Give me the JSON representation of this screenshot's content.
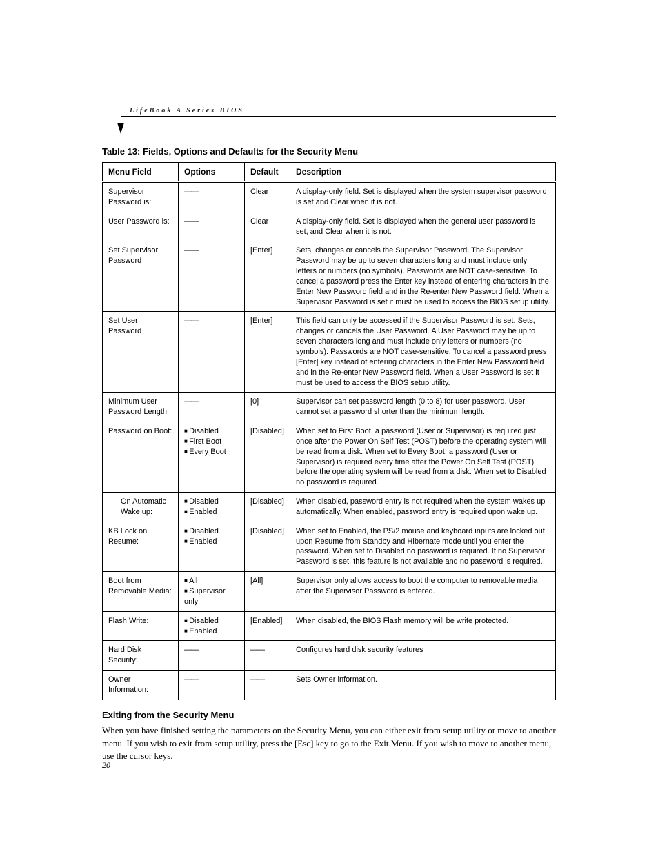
{
  "header": {
    "running_title": "LifeBook A Series BIOS"
  },
  "table": {
    "title": "Table 13: Fields, Options and Defaults for the Security Menu",
    "columns": {
      "c1": "Menu Field",
      "c2": "Options",
      "c3": "Default",
      "c4": "Description"
    },
    "rows": [
      {
        "field": "Supervisor Password is:",
        "options_dash": "——",
        "default": "Clear",
        "desc": "A display-only field. Set is displayed when the system supervisor password is set and Clear when it is not."
      },
      {
        "field": "User Password is:",
        "options_dash": "——",
        "default": "Clear",
        "desc": "A display-only field. Set is displayed when the general user password is set, and Clear when it is not."
      },
      {
        "field": "Set Supervisor Password",
        "options_dash": "——",
        "default": "[Enter]",
        "desc": "Sets, changes or cancels the Supervisor Password. The Supervisor Password may be up to seven characters long and must include only letters or numbers (no symbols). Passwords are NOT case-sensitive. To cancel a password press the Enter key instead of entering characters in the Enter New Password field and in the Re-enter New Password field. When a Supervisor Password is set it must be used to access the BIOS setup utility."
      },
      {
        "field": "Set User Password",
        "options_dash": "——",
        "default": "[Enter]",
        "desc": "This field can only be accessed if the Supervisor Password is set. Sets, changes or cancels the User Password. A User Password may be up to seven characters long and must include only letters or numbers (no symbols). Passwords are NOT case-sensitive. To cancel a password press [Enter] key instead of entering characters in the Enter New Password field and in the Re-enter New Password field. When a User Password is set it must be used to access the BIOS setup utility."
      },
      {
        "field": "Minimum User Password Length:",
        "options_dash": "——",
        "default": "[0]",
        "desc": "Supervisor can set password length (0 to 8) for user password. User cannot set a password shorter than the minimum length."
      },
      {
        "field": "Password on Boot:",
        "options_list": [
          "Disabled",
          "First Boot",
          "Every Boot"
        ],
        "default": "[Disabled]",
        "desc": "When set to First Boot, a password (User or Supervisor) is required just once after the Power On Self Test (POST) before the operating system will be read from a disk. When set to Every Boot, a password (User or Supervisor) is required every time after the Power On Self Test (POST) before the operating system will be read from a disk. When set to Disabled no password is required."
      },
      {
        "field_indent": "On Automatic Wake up:",
        "options_list": [
          "Disabled",
          "Enabled"
        ],
        "default": "[Disabled]",
        "desc": "When disabled, password entry is not required when the system wakes up automatically. When enabled, password entry is required upon wake up."
      },
      {
        "field": "KB Lock on Resume:",
        "options_list": [
          "Disabled",
          "Enabled"
        ],
        "default": "[Disabled]",
        "desc": "When set to Enabled, the PS/2 mouse and keyboard inputs are locked out upon Resume from Standby and Hibernate mode until you enter the password. When set to Disabled no password is required. If no Supervisor Password is set, this feature is not available and no password is required."
      },
      {
        "field": "Boot from Removable Media:",
        "options_list": [
          "All",
          "Supervisor only"
        ],
        "default": "[All]",
        "desc": "Supervisor only allows access to boot the computer to removable media after the Supervisor Password is entered."
      },
      {
        "field": "Flash Write:",
        "options_list": [
          "Disabled",
          "Enabled"
        ],
        "default": "[Enabled]",
        "desc": "When disabled, the BIOS Flash memory will be write protected."
      },
      {
        "field": "Hard Disk Security:",
        "options_dash": "——",
        "default_dash": "——",
        "desc": "Configures hard disk security features"
      },
      {
        "field": "Owner Information:",
        "options_dash": "——",
        "default_dash": "——",
        "desc": "Sets Owner information."
      }
    ]
  },
  "exit_section": {
    "heading": "Exiting from the Security Menu",
    "paragraph": "When you have finished setting the parameters on the Security Menu, you can either exit from setup utility or move to another menu. If you wish to exit from setup utility, press the [Esc] key to go to the Exit Menu. If you wish to move to another menu, use the cursor keys."
  },
  "page_number": "20"
}
